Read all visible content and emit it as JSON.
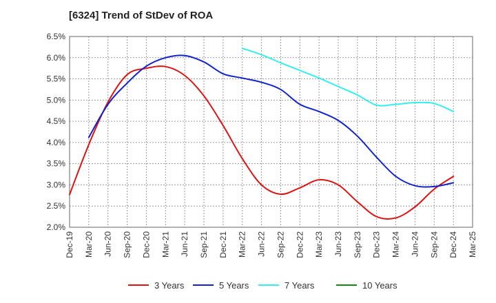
{
  "chart_data": {
    "type": "line",
    "title": "[6324]  Trend of StDev of ROA",
    "xlabel": "",
    "ylabel": "",
    "grid": true,
    "legend_position": "bottom",
    "categories": [
      "Dec-19",
      "Mar-20",
      "Jun-20",
      "Sep-20",
      "Dec-20",
      "Mar-21",
      "Jun-21",
      "Sep-21",
      "Dec-21",
      "Mar-22",
      "Jun-22",
      "Sep-22",
      "Dec-22",
      "Mar-23",
      "Jun-23",
      "Sep-23",
      "Dec-23",
      "Mar-24",
      "Jun-24",
      "Sep-24",
      "Dec-24",
      "Mar-25"
    ],
    "yticks": [
      "2.0%",
      "2.5%",
      "3.0%",
      "3.5%",
      "4.0%",
      "4.5%",
      "5.0%",
      "5.5%",
      "6.0%",
      "6.5%"
    ],
    "ylim": [
      2.0,
      6.5
    ],
    "series": [
      {
        "name": "3 Years",
        "color": "#dd1111",
        "values": [
          2.77,
          3.95,
          4.95,
          5.6,
          5.75,
          5.79,
          5.58,
          5.1,
          4.4,
          3.62,
          3.0,
          2.78,
          2.93,
          3.12,
          3.0,
          2.6,
          2.25,
          2.22,
          2.48,
          2.9,
          3.2,
          null
        ]
      },
      {
        "name": "5 Years",
        "color": "#1122cc",
        "values": [
          null,
          4.12,
          4.9,
          5.4,
          5.8,
          6.0,
          6.05,
          5.9,
          5.62,
          5.52,
          5.42,
          5.25,
          4.9,
          4.73,
          4.52,
          4.15,
          3.65,
          3.2,
          2.98,
          2.96,
          3.05,
          null
        ]
      },
      {
        "name": "7 Years",
        "color": "#33eeee",
        "values": [
          null,
          null,
          null,
          null,
          null,
          null,
          null,
          null,
          null,
          6.22,
          6.07,
          5.88,
          5.7,
          5.52,
          5.32,
          5.12,
          4.88,
          4.9,
          4.94,
          4.92,
          4.73,
          null
        ]
      },
      {
        "name": "10 Years",
        "color": "#118811",
        "values": [
          null,
          null,
          null,
          null,
          null,
          null,
          null,
          null,
          null,
          null,
          null,
          null,
          null,
          null,
          null,
          null,
          null,
          null,
          null,
          null,
          null,
          null
        ]
      }
    ]
  }
}
